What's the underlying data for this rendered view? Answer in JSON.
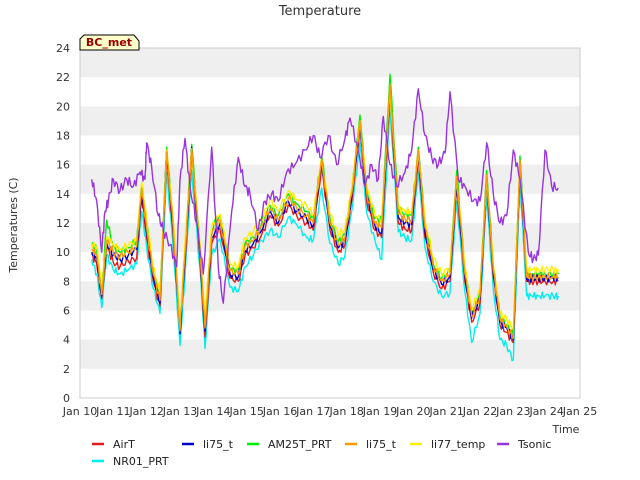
{
  "chart_data": {
    "type": "line",
    "title": "Temperature",
    "xlabel": "Time",
    "ylabel": "Temperatures (C)",
    "badge": "BC_met",
    "ylim": [
      0,
      24
    ],
    "yticks": [
      0,
      2,
      4,
      6,
      8,
      10,
      12,
      14,
      16,
      18,
      20,
      22,
      24
    ],
    "xlim": [
      10,
      25
    ],
    "xticks": [
      {
        "v": 10,
        "label": "Jan 10"
      },
      {
        "v": 11,
        "label": "Jan 11"
      },
      {
        "v": 12,
        "label": "Jan 12"
      },
      {
        "v": 13,
        "label": "Jan 13"
      },
      {
        "v": 14,
        "label": "Jan 14"
      },
      {
        "v": 15,
        "label": "Jan 15"
      },
      {
        "v": 16,
        "label": "Jan 16"
      },
      {
        "v": 17,
        "label": "Jan 17"
      },
      {
        "v": 18,
        "label": "Jan 18"
      },
      {
        "v": 19,
        "label": "Jan 19"
      },
      {
        "v": 20,
        "label": "Jan 20"
      },
      {
        "v": 21,
        "label": "Jan 21"
      },
      {
        "v": 22,
        "label": "Jan 22"
      },
      {
        "v": 23,
        "label": "Jan 23"
      },
      {
        "v": 24,
        "label": "Jan 24"
      },
      {
        "v": 25,
        "label": "Jan 25"
      }
    ],
    "grid": "horizontal alternating bands",
    "legend": "bottom",
    "base_x": [
      10.35,
      10.5,
      10.65,
      10.8,
      11.0,
      11.2,
      11.45,
      11.7,
      11.85,
      12.0,
      12.2,
      12.4,
      12.6,
      12.8,
      13.0,
      13.15,
      13.35,
      13.6,
      13.75,
      13.95,
      14.2,
      14.5,
      14.75,
      14.95,
      15.2,
      15.45,
      15.7,
      15.95,
      16.25,
      16.5,
      16.8,
      17.0,
      17.25,
      17.5,
      17.75,
      17.95,
      18.15,
      18.4,
      18.6,
      18.85,
      19.05,
      19.3,
      19.55,
      19.75,
      19.95,
      20.15,
      20.35,
      20.6,
      20.85,
      21.1,
      21.3,
      21.55,
      21.75,
      22.0,
      22.2,
      22.4,
      22.6,
      22.8,
      23.0,
      23.2,
      23.4,
      23.55,
      23.75,
      23.95,
      24.2,
      24.35
    ],
    "series": [
      {
        "name": "AirT",
        "color": "#e31a1c",
        "values": [
          9.8,
          9.2,
          6.8,
          10.4,
          9.3,
          9.0,
          9.4,
          9.6,
          13.8,
          11.0,
          8.0,
          6.3,
          16.5,
          11.0,
          5.0,
          9.3,
          16.8,
          9.5,
          4.2,
          10.6,
          11.6,
          8.2,
          8.0,
          9.8,
          10.3,
          11.2,
          12.5,
          11.8,
          13.2,
          12.5,
          12.0,
          11.5,
          15.8,
          11.5,
          10.0,
          10.5,
          13.5,
          18.5,
          13.5,
          11.5,
          11.0,
          20.8,
          12.0,
          11.6,
          11.5,
          16.5,
          11.0,
          8.6,
          7.5,
          8.0,
          14.5,
          8.0,
          5.2,
          6.5,
          14.8,
          8.3,
          5.0,
          4.5,
          3.8,
          15.8,
          8.0,
          8.0,
          8.0,
          8.0,
          8.0,
          8.0
        ]
      },
      {
        "name": "NR01_PRT",
        "color": "#00eeee",
        "values": [
          9.5,
          8.5,
          6.2,
          9.8,
          8.8,
          8.5,
          8.8,
          9.2,
          12.8,
          10.3,
          7.5,
          5.8,
          15.5,
          10.2,
          3.6,
          8.4,
          15.6,
          8.8,
          3.4,
          9.8,
          10.9,
          7.6,
          7.3,
          9.0,
          9.8,
          10.8,
          11.5,
          11.0,
          12.4,
          11.9,
          11.0,
          10.8,
          14.4,
          10.6,
          9.2,
          9.8,
          12.8,
          17.5,
          12.7,
          10.8,
          9.5,
          19.8,
          11.4,
          11.0,
          10.8,
          15.5,
          10.3,
          8.0,
          7.0,
          7.2,
          13.5,
          7.2,
          3.8,
          5.8,
          13.8,
          7.4,
          4.0,
          3.6,
          2.6,
          14.8,
          7.0,
          7.0,
          7.0,
          7.0,
          7.0,
          7.0
        ]
      },
      {
        "name": "li75_t",
        "color": "#0000cc",
        "values": [
          10.0,
          9.6,
          7.0,
          10.6,
          9.8,
          9.5,
          9.8,
          10.2,
          14.2,
          11.4,
          8.3,
          6.5,
          17.0,
          11.4,
          4.4,
          9.6,
          17.2,
          9.8,
          4.6,
          11.0,
          12.0,
          8.5,
          8.3,
          10.1,
          10.6,
          11.5,
          12.8,
          12.0,
          13.5,
          12.8,
          12.3,
          11.8,
          16.2,
          11.8,
          10.3,
          10.8,
          13.8,
          18.8,
          13.8,
          11.8,
          11.3,
          21.2,
          12.4,
          12.0,
          11.9,
          16.8,
          11.4,
          8.8,
          7.8,
          8.3,
          14.8,
          8.3,
          5.5,
          6.8,
          15.0,
          8.6,
          5.2,
          4.8,
          4.0,
          16.1,
          8.2,
          8.2,
          8.2,
          8.2,
          8.2,
          8.2
        ]
      },
      {
        "name": "AM25T_PRT",
        "color": "#00ee00",
        "values": [
          10.5,
          10.2,
          7.2,
          12.2,
          10.4,
          10.0,
          10.3,
          10.8,
          14.6,
          12.0,
          8.6,
          7.0,
          17.2,
          12.0,
          4.8,
          10.2,
          17.4,
          10.3,
          5.0,
          11.6,
          12.6,
          8.8,
          8.8,
          10.6,
          11.0,
          12.0,
          13.2,
          12.5,
          14.0,
          13.3,
          12.8,
          12.3,
          16.6,
          12.3,
          10.7,
          11.2,
          14.2,
          19.4,
          14.2,
          12.3,
          12.2,
          22.2,
          13.0,
          12.6,
          12.5,
          17.2,
          12.0,
          9.2,
          8.2,
          8.7,
          15.6,
          8.7,
          5.8,
          7.2,
          15.6,
          9.0,
          5.6,
          5.0,
          4.3,
          16.6,
          8.5,
          8.5,
          8.5,
          8.5,
          8.5,
          8.5
        ]
      },
      {
        "name": "li75_t",
        "color": "#ff9900",
        "values": [
          10.2,
          9.8,
          7.1,
          10.8,
          10.0,
          9.7,
          10.0,
          10.4,
          14.4,
          11.6,
          8.5,
          6.7,
          16.9,
          11.6,
          4.6,
          9.9,
          17.1,
          10.0,
          4.8,
          11.2,
          12.2,
          8.7,
          8.5,
          10.4,
          10.8,
          11.8,
          13.0,
          12.2,
          13.7,
          13.0,
          12.5,
          12.0,
          16.4,
          12.0,
          10.5,
          11.0,
          14.0,
          19.0,
          14.0,
          12.0,
          11.7,
          21.5,
          12.6,
          12.3,
          12.2,
          17.0,
          11.7,
          9.0,
          8.0,
          8.5,
          15.2,
          8.5,
          5.6,
          7.0,
          15.3,
          8.8,
          5.4,
          4.9,
          4.1,
          16.3,
          8.3,
          8.3,
          8.3,
          8.3,
          8.3,
          8.3
        ]
      },
      {
        "name": "li77_temp",
        "color": "#ffee00",
        "values": [
          10.6,
          10.4,
          7.6,
          11.0,
          10.5,
          10.2,
          10.5,
          10.8,
          14.8,
          12.2,
          9.0,
          7.2,
          17.0,
          12.2,
          5.2,
          10.6,
          17.0,
          10.6,
          5.4,
          11.8,
          12.6,
          9.2,
          9.0,
          11.0,
          11.4,
          12.2,
          13.6,
          12.8,
          14.2,
          13.6,
          13.2,
          12.6,
          16.4,
          12.6,
          11.2,
          11.6,
          14.4,
          19.0,
          14.4,
          12.6,
          12.2,
          21.0,
          13.0,
          12.8,
          12.8,
          16.8,
          12.2,
          9.6,
          8.5,
          9.0,
          15.0,
          9.0,
          6.0,
          7.5,
          15.0,
          9.2,
          5.8,
          5.4,
          4.8,
          16.2,
          8.8,
          8.8,
          8.8,
          8.8,
          8.8,
          8.8
        ]
      }
    ],
    "tsonic": {
      "name": "Tsonic",
      "color": "#9933dd",
      "x": [
        10.35,
        10.5,
        10.65,
        10.75,
        10.85,
        11.0,
        11.2,
        11.4,
        11.6,
        11.8,
        11.95,
        12.0,
        12.15,
        12.35,
        12.5,
        12.7,
        12.9,
        13.0,
        13.15,
        13.3,
        13.5,
        13.7,
        13.95,
        14.15,
        14.3,
        14.55,
        14.75,
        14.95,
        15.1,
        15.35,
        15.55,
        15.75,
        15.95,
        16.2,
        16.45,
        16.75,
        17.0,
        17.2,
        17.45,
        17.7,
        17.95,
        18.1,
        18.35,
        18.55,
        18.75,
        18.95,
        19.1,
        19.3,
        19.5,
        19.75,
        19.95,
        20.15,
        20.35,
        20.55,
        20.75,
        20.95,
        21.1,
        21.35,
        21.55,
        21.8,
        22.0,
        22.2,
        22.4,
        22.6,
        22.8,
        23.0,
        23.2,
        23.45,
        23.6,
        23.75,
        23.95,
        24.15,
        24.35
      ],
      "values": [
        15.0,
        13.5,
        10.0,
        12.8,
        13.5,
        15.0,
        14.2,
        15.0,
        14.5,
        15.5,
        15.0,
        17.5,
        15.8,
        12.5,
        11.5,
        10.5,
        9.0,
        15.0,
        17.8,
        14.5,
        12.0,
        8.5,
        17.2,
        9.0,
        6.5,
        12.8,
        16.5,
        14.5,
        14.0,
        11.5,
        13.5,
        14.0,
        13.5,
        15.5,
        16.0,
        17.0,
        18.0,
        16.5,
        18.0,
        16.0,
        17.8,
        19.2,
        17.0,
        14.5,
        16.0,
        15.0,
        19.3,
        16.0,
        14.5,
        15.5,
        17.0,
        21.2,
        18.0,
        16.5,
        16.0,
        16.8,
        21.0,
        15.0,
        14.5,
        13.5,
        13.5,
        17.5,
        14.0,
        12.0,
        12.5,
        17.0,
        15.0,
        10.0,
        9.5,
        9.8,
        17.0,
        14.5,
        14.4
      ]
    }
  },
  "legend": {
    "items": [
      {
        "label": "AirT",
        "color": "#e31a1c"
      },
      {
        "label": "li75_t",
        "color": "#0000cc"
      },
      {
        "label": "AM25T_PRT",
        "color": "#00ee00"
      },
      {
        "label": "li75_t",
        "color": "#ff9900"
      },
      {
        "label": "li77_temp",
        "color": "#ffee00"
      },
      {
        "label": "Tsonic",
        "color": "#9933dd"
      },
      {
        "label": "NR01_PRT",
        "color": "#00eeee"
      }
    ]
  },
  "colors": {
    "band": "#efefef",
    "axis": "#cccccc"
  }
}
